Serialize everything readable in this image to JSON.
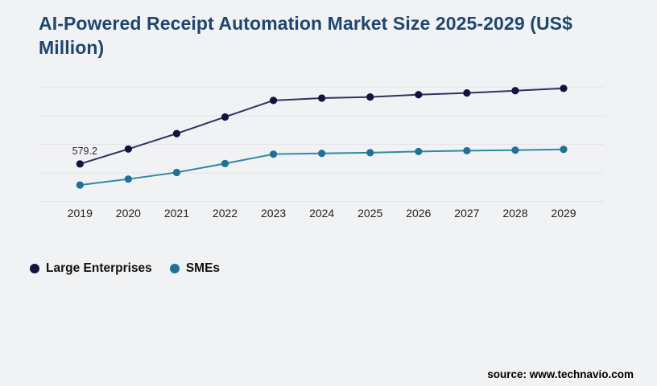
{
  "page": {
    "background": "#f1f2f4"
  },
  "header": {
    "title": "AI-Powered Receipt Automation Market Size 2025-2029 (US$ Million)",
    "title_color": "#1e466e"
  },
  "chart_data": {
    "type": "line",
    "title": "AI-Powered Receipt Automation Market Size 2025-2029 (US$ Million)",
    "x": [
      "2019",
      "2020",
      "2021",
      "2022",
      "2023",
      "2024",
      "2025",
      "2026",
      "2027",
      "2028",
      "2029"
    ],
    "series": [
      {
        "name": "Large Enterprises",
        "marker_color": "#131340",
        "line_color": "#31315f",
        "values": [
          579.2,
          710,
          845,
          990,
          1135,
          1155,
          1165,
          1185,
          1200,
          1220,
          1240
        ]
      },
      {
        "name": "SMEs",
        "marker_color": "#1f7293",
        "line_color": "#2d89a2",
        "values": [
          395,
          447,
          505,
          583,
          665,
          672,
          678,
          688,
          695,
          700,
          707
        ]
      }
    ],
    "annotations": [
      {
        "series": 0,
        "x_index": 0,
        "text": "579.2"
      }
    ],
    "xlabel": "",
    "ylabel": "",
    "ylim": [
      250,
      1250
    ],
    "grid": true,
    "gridline_count": 5,
    "gridline_color": "#e4e5e9",
    "tick_label_color": "#1f1f1f",
    "annotation_color": "#2b2b2b",
    "legend_position": "bottom-left"
  },
  "footer": {
    "source": "source: www.technavio.com"
  }
}
